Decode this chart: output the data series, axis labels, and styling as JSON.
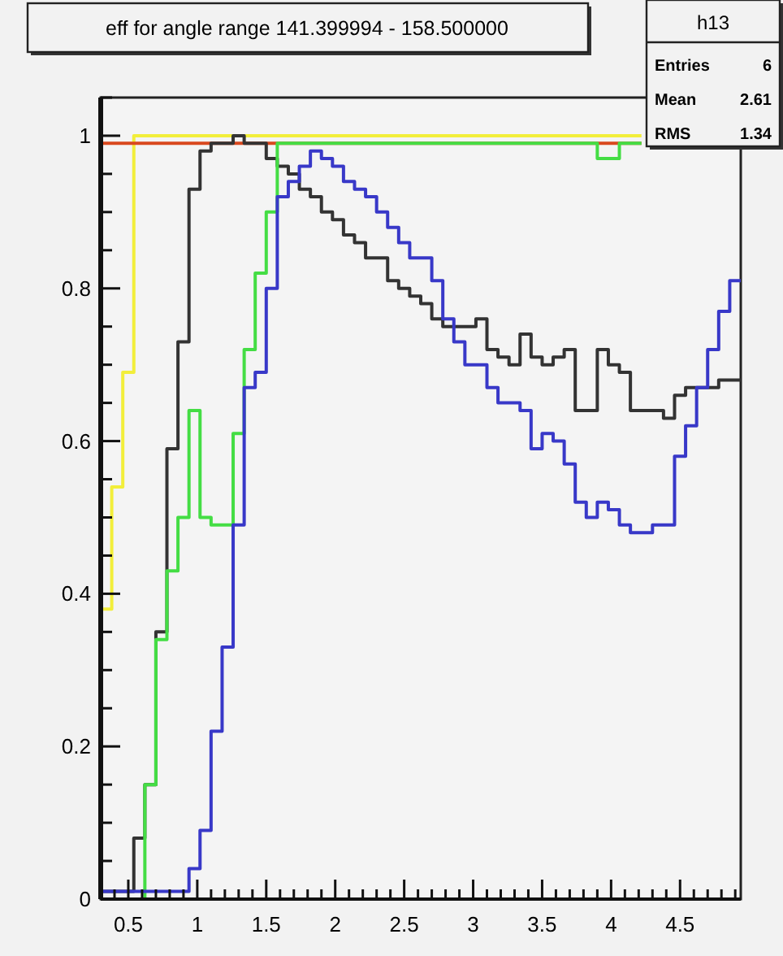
{
  "chart_data": {
    "type": "histogram",
    "title": "eff for angle range 141.399994 - 158.500000",
    "annotations": [
      "h13",
      "Entries",
      "6",
      "Mean",
      "2.61",
      "RMS",
      "1.34"
    ],
    "bins": [
      0.3,
      0.38,
      0.46,
      0.54,
      0.62,
      0.7,
      0.78,
      0.86,
      0.94,
      1.02,
      1.1,
      1.18,
      1.26,
      1.34,
      1.42,
      1.5,
      1.58,
      1.66,
      1.74,
      1.82,
      1.9,
      1.98,
      2.06,
      2.14,
      2.22,
      2.3,
      2.38,
      2.46,
      2.54,
      2.62,
      2.7,
      2.78,
      2.86,
      2.94,
      3.02,
      3.1,
      3.18,
      3.26,
      3.34,
      3.42,
      3.5,
      3.58,
      3.66,
      3.74,
      3.82,
      3.9,
      3.98,
      4.06,
      4.14,
      4.22,
      4.3,
      4.38,
      4.46,
      4.54,
      4.62,
      4.7,
      4.78,
      4.86,
      4.94
    ],
    "series": [
      {
        "color": "#f2ee3a",
        "bins": [
          0.3,
          0.38,
          0.46,
          0.54,
          0.62,
          0.7,
          0.78,
          0.86,
          0.94,
          1.02,
          1.1,
          1.18,
          1.26,
          1.34,
          1.42,
          1.5,
          1.58,
          1.66,
          1.74,
          1.82,
          1.9,
          1.98,
          2.06,
          2.14,
          2.22,
          2.3,
          2.38,
          2.46,
          2.54,
          2.62,
          2.7,
          2.78,
          2.86,
          2.94,
          3.02,
          3.1,
          3.18,
          3.26,
          3.34,
          3.42,
          3.5,
          3.58,
          3.66,
          3.74,
          3.82,
          3.9,
          3.98,
          4.06,
          4.14,
          4.22
        ],
        "values": [
          0.38,
          0.54,
          0.69,
          1,
          1,
          1,
          1,
          1,
          1,
          1,
          1,
          1,
          1,
          1,
          1,
          1,
          1,
          1,
          1,
          1,
          1,
          1,
          1,
          1,
          1,
          1,
          1,
          1,
          1,
          1,
          1,
          1,
          1,
          1,
          1,
          1,
          1,
          1,
          1,
          1,
          1,
          1,
          1,
          1,
          1,
          1,
          1,
          1,
          1
        ]
      },
      {
        "color": "#d9481e",
        "bins": [
          0.3,
          0.38,
          0.46,
          0.54,
          0.62,
          0.7,
          0.78,
          0.86,
          0.94,
          1.02,
          1.1,
          1.18,
          1.26,
          1.34,
          1.42,
          1.5,
          1.58,
          1.66,
          1.74,
          1.82,
          1.9,
          1.98,
          2.06,
          2.14,
          2.22,
          2.3,
          2.38,
          2.46,
          2.54,
          2.62,
          2.7,
          2.78,
          2.86,
          2.94,
          3.02,
          3.1,
          3.18,
          3.26,
          3.34,
          3.42,
          3.5,
          3.58,
          3.66,
          3.74,
          3.82,
          3.9,
          3.98,
          4.06,
          4.14,
          4.22
        ],
        "values": [
          0.99,
          0.99,
          0.99,
          0.99,
          0.99,
          0.99,
          0.99,
          0.99,
          0.99,
          0.99,
          0.99,
          0.99,
          0.99,
          0.99,
          0.99,
          0.99,
          0.99,
          0.99,
          0.99,
          0.99,
          0.99,
          0.99,
          0.99,
          0.99,
          0.99,
          0.99,
          0.99,
          0.99,
          0.99,
          0.99,
          0.99,
          0.99,
          0.99,
          0.99,
          0.99,
          0.99,
          0.99,
          0.99,
          0.99,
          0.99,
          0.99,
          0.99,
          0.99,
          0.99,
          0.99,
          0.99,
          0.99,
          0.99,
          0.99
        ]
      },
      {
        "color": "#333333",
        "values": [
          0.01,
          0.01,
          0.01,
          0.08,
          0.15,
          0.35,
          0.59,
          0.73,
          0.93,
          0.98,
          0.99,
          0.99,
          1,
          0.99,
          0.99,
          0.97,
          0.96,
          0.95,
          0.93,
          0.92,
          0.9,
          0.89,
          0.87,
          0.86,
          0.84,
          0.84,
          0.81,
          0.8,
          0.79,
          0.78,
          0.76,
          0.75,
          0.75,
          0.75,
          0.76,
          0.72,
          0.71,
          0.7,
          0.74,
          0.71,
          0.7,
          0.71,
          0.72,
          0.64,
          0.64,
          0.72,
          0.7,
          0.69,
          0.64,
          0.64,
          0.64,
          0.63,
          0.66,
          0.67,
          0.67,
          0.67,
          0.68,
          0.68
        ]
      },
      {
        "color": "#44dd44",
        "bins": [
          0.3,
          0.38,
          0.46,
          0.54,
          0.62,
          0.7,
          0.78,
          0.86,
          0.94,
          1.02,
          1.1,
          1.18,
          1.26,
          1.34,
          1.42,
          1.5,
          1.58,
          1.66,
          1.74,
          1.82,
          1.9,
          1.98,
          2.06,
          2.14,
          2.22,
          2.3,
          2.38,
          2.46,
          2.54,
          2.62,
          2.7,
          2.78,
          2.86,
          2.94,
          3.02,
          3.1,
          3.18,
          3.26,
          3.34,
          3.42,
          3.5,
          3.58,
          3.66,
          3.74,
          3.82,
          3.9,
          3.98,
          4.06,
          4.14,
          4.22
        ],
        "values": [
          0,
          0,
          0,
          0,
          0.15,
          0.34,
          0.43,
          0.5,
          0.64,
          0.5,
          0.49,
          0.49,
          0.61,
          0.72,
          0.82,
          0.9,
          0.99,
          0.99,
          0.99,
          0.99,
          0.99,
          0.99,
          0.99,
          0.99,
          0.99,
          0.99,
          0.99,
          0.99,
          0.99,
          0.99,
          0.99,
          0.99,
          0.99,
          0.99,
          0.99,
          0.99,
          0.99,
          0.99,
          0.99,
          0.99,
          0.99,
          0.99,
          0.99,
          0.99,
          0.99,
          0.97,
          0.97,
          0.99,
          0.99
        ]
      },
      {
        "color": "#3838c8",
        "values": [
          0.01,
          0.01,
          0.01,
          0.01,
          0.01,
          0.01,
          0.01,
          0.01,
          0.04,
          0.09,
          0.22,
          0.33,
          0.49,
          0.67,
          0.69,
          0.8,
          0.92,
          0.94,
          0.96,
          0.98,
          0.97,
          0.96,
          0.94,
          0.93,
          0.92,
          0.9,
          0.88,
          0.86,
          0.84,
          0.84,
          0.81,
          0.76,
          0.73,
          0.7,
          0.7,
          0.67,
          0.65,
          0.65,
          0.64,
          0.59,
          0.61,
          0.6,
          0.57,
          0.52,
          0.5,
          0.52,
          0.51,
          0.49,
          0.48,
          0.48,
          0.49,
          0.49,
          0.58,
          0.62,
          0.67,
          0.72,
          0.77,
          0.81
        ]
      }
    ],
    "xlim": [
      0.3,
      4.94
    ],
    "ylim": [
      0,
      1.05
    ],
    "xticks": [
      {
        "value": 0.4,
        "label": null
      },
      0.5,
      {
        "value": 0.6,
        "label": null
      },
      {
        "value": 0.7,
        "label": null
      },
      {
        "value": 0.8,
        "label": null
      },
      {
        "value": 0.9,
        "label": null
      },
      1,
      {
        "value": 1.1,
        "label": null
      },
      {
        "value": 1.2,
        "label": null
      },
      {
        "value": 1.3,
        "label": null
      },
      {
        "value": 1.4,
        "label": null
      },
      1.5,
      {
        "value": 1.6,
        "label": null
      },
      {
        "value": 1.7,
        "label": null
      },
      {
        "value": 1.8,
        "label": null
      },
      {
        "value": 1.9,
        "label": null
      },
      2,
      {
        "value": 2.1,
        "label": null
      },
      {
        "value": 2.2,
        "label": null
      },
      {
        "value": 2.3,
        "label": null
      },
      {
        "value": 2.4,
        "label": null
      },
      2.5,
      {
        "value": 2.6,
        "label": null
      },
      {
        "value": 2.7,
        "label": null
      },
      {
        "value": 2.8,
        "label": null
      },
      {
        "value": 2.9,
        "label": null
      },
      3,
      {
        "value": 3.1,
        "label": null
      },
      {
        "value": 3.2,
        "label": null
      },
      {
        "value": 3.3,
        "label": null
      },
      {
        "value": 3.4,
        "label": null
      },
      3.5,
      {
        "value": 3.6,
        "label": null
      },
      {
        "value": 3.7,
        "label": null
      },
      {
        "value": 3.8,
        "label": null
      },
      {
        "value": 3.9,
        "label": null
      },
      4,
      {
        "value": 4.1,
        "label": null
      },
      {
        "value": 4.2,
        "label": null
      },
      {
        "value": 4.3,
        "label": null
      },
      {
        "value": 4.4,
        "label": null
      },
      4.5,
      {
        "value": 4.6,
        "label": null
      },
      {
        "value": 4.7,
        "label": null
      },
      {
        "value": 4.8,
        "label": null
      },
      {
        "value": 4.9,
        "label": null
      }
    ],
    "yticks": [
      0,
      {
        "value": 0.05,
        "label": null
      },
      {
        "value": 0.1,
        "label": null
      },
      {
        "value": 0.15,
        "label": null
      },
      0.2,
      {
        "value": 0.25,
        "label": null
      },
      {
        "value": 0.3,
        "label": null
      },
      {
        "value": 0.35,
        "label": null
      },
      0.4,
      {
        "value": 0.45,
        "label": null
      },
      {
        "value": 0.5,
        "label": null
      },
      {
        "value": 0.55,
        "label": null
      },
      0.6,
      {
        "value": 0.65,
        "label": null
      },
      {
        "value": 0.7,
        "label": null
      },
      {
        "value": 0.75,
        "label": null
      },
      0.8,
      {
        "value": 0.85,
        "label": null
      },
      {
        "value": 0.9,
        "label": null
      },
      {
        "value": 0.95,
        "label": null
      },
      1,
      {
        "value": 1.05,
        "label": null
      }
    ]
  }
}
